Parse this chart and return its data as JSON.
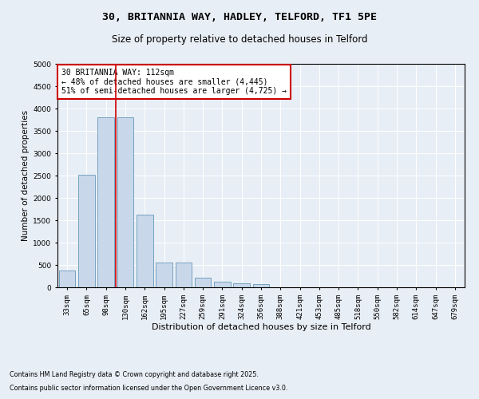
{
  "title1": "30, BRITANNIA WAY, HADLEY, TELFORD, TF1 5PE",
  "title2": "Size of property relative to detached houses in Telford",
  "xlabel": "Distribution of detached houses by size in Telford",
  "ylabel": "Number of detached properties",
  "categories": [
    "33sqm",
    "65sqm",
    "98sqm",
    "130sqm",
    "162sqm",
    "195sqm",
    "227sqm",
    "259sqm",
    "291sqm",
    "324sqm",
    "356sqm",
    "388sqm",
    "421sqm",
    "453sqm",
    "485sqm",
    "518sqm",
    "550sqm",
    "582sqm",
    "614sqm",
    "647sqm",
    "679sqm"
  ],
  "values": [
    370,
    2520,
    3800,
    3800,
    1620,
    550,
    550,
    220,
    120,
    90,
    70,
    0,
    0,
    0,
    0,
    0,
    0,
    0,
    0,
    0,
    0
  ],
  "bar_color": "#c8d8ea",
  "bar_edge_color": "#6699bb",
  "vline_x_pos": 2.5,
  "vline_color": "#cc0000",
  "annotation_text": "30 BRITANNIA WAY: 112sqm\n← 48% of detached houses are smaller (4,445)\n51% of semi-detached houses are larger (4,725) →",
  "annotation_box_edge": "#cc0000",
  "ylim": [
    0,
    5000
  ],
  "yticks": [
    0,
    500,
    1000,
    1500,
    2000,
    2500,
    3000,
    3500,
    4000,
    4500,
    5000
  ],
  "background_color": "#e8eef5",
  "plot_background": "#e8eef5",
  "footer1": "Contains HM Land Registry data © Crown copyright and database right 2025.",
  "footer2": "Contains public sector information licensed under the Open Government Licence v3.0.",
  "title_fontsize": 9.5,
  "subtitle_fontsize": 8.5,
  "tick_fontsize": 6.5,
  "ylabel_fontsize": 7.5,
  "xlabel_fontsize": 8,
  "annotation_fontsize": 7,
  "footer_fontsize": 5.8
}
